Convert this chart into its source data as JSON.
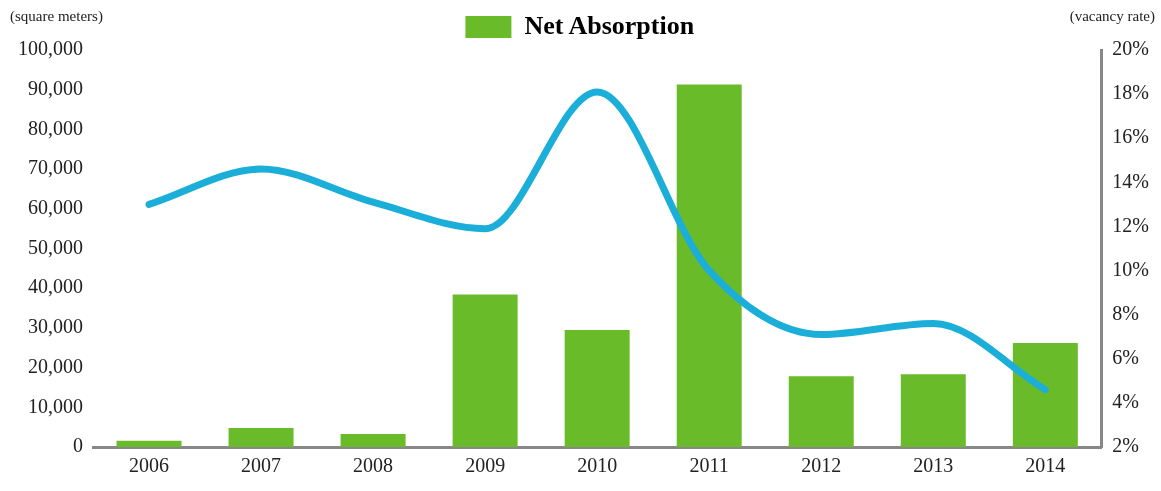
{
  "chart_data": {
    "type": "bar",
    "ylabel": "(square meters)",
    "y2label": "(vacancy rate)",
    "categories": [
      "2006",
      "2007",
      "2008",
      "2009",
      "2010",
      "2011",
      "2012",
      "2013",
      "2014"
    ],
    "series": [
      {
        "name": "Net Absorption",
        "color": "#6abb29",
        "values": [
          1600,
          4800,
          3300,
          38400,
          29500,
          91300,
          17800,
          18300,
          26200
        ]
      },
      {
        "type": "line",
        "axis": "y2",
        "color": "#1aaed8",
        "values": [
          13.0,
          14.6,
          13.1,
          11.9,
          18.1,
          10.0,
          7.1,
          7.6,
          4.6
        ]
      }
    ],
    "ylim": [
      0,
      100000
    ],
    "yticks": [
      {
        "value": 0,
        "label": "0"
      },
      {
        "value": 10000,
        "label": "10,000"
      },
      {
        "value": 20000,
        "label": "20,000"
      },
      {
        "value": 30000,
        "label": "30,000"
      },
      {
        "value": 40000,
        "label": "40,000"
      },
      {
        "value": 50000,
        "label": "50,000"
      },
      {
        "value": 60000,
        "label": "60,000"
      },
      {
        "value": 70000,
        "label": "70,000"
      },
      {
        "value": 80000,
        "label": "80,000"
      },
      {
        "value": 90000,
        "label": "90,000"
      },
      {
        "value": 100000,
        "label": "100,000"
      }
    ],
    "y2lim": [
      2,
      20
    ],
    "y2ticks": [
      {
        "value": 2,
        "label": "2%"
      },
      {
        "value": 4,
        "label": "4%"
      },
      {
        "value": 6,
        "label": "6%"
      },
      {
        "value": 8,
        "label": "8%"
      },
      {
        "value": 10,
        "label": "10%"
      },
      {
        "value": 12,
        "label": "12%"
      },
      {
        "value": 14,
        "label": "14%"
      },
      {
        "value": 16,
        "label": "16%"
      },
      {
        "value": 18,
        "label": "18%"
      },
      {
        "value": 20,
        "label": "20%"
      }
    ],
    "grid": false,
    "legend": "top",
    "marker": "none",
    "line_style": "solid"
  }
}
